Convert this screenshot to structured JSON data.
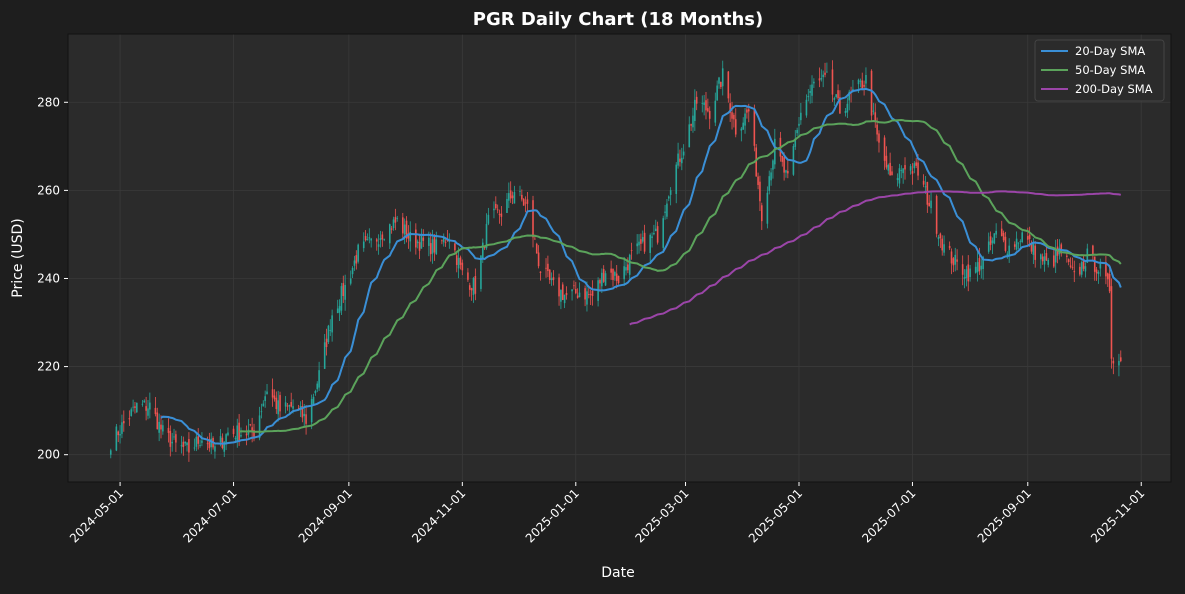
{
  "chart_data": {
    "type": "candlestick",
    "title": "PGR Daily Chart (18 Months)",
    "xlabel": "Date",
    "ylabel": "Price (USD)",
    "xlim": [
      "2024-04-03",
      "2025-11-17"
    ],
    "ylim": [
      193.8,
      295.5
    ],
    "yticks": [
      200,
      220,
      240,
      260,
      280
    ],
    "xticks": [
      "2024-05-01",
      "2024-07-01",
      "2024-09-01",
      "2024-11-01",
      "2025-01-01",
      "2025-03-01",
      "2025-05-01",
      "2025-07-01",
      "2025-09-01",
      "2025-11-01"
    ],
    "grid": true,
    "legend_position": "top-right",
    "legend": [
      {
        "label": "20-Day SMA",
        "window": 20,
        "color": "#3a8fd6"
      },
      {
        "label": "50-Day SMA",
        "window": 50,
        "color": "#5ba35b"
      },
      {
        "label": "200-Day SMA",
        "window": 200,
        "color": "#9b45a8"
      }
    ],
    "colors": {
      "up": "#26a69a",
      "down": "#ef5350",
      "plot_bg": "#2b2b2b",
      "grid": "#3a3a3a"
    },
    "close_keypoints": [
      [
        "2024-04-26",
        203
      ],
      [
        "2024-05-03",
        207
      ],
      [
        "2024-05-10",
        211
      ],
      [
        "2024-05-17",
        211
      ],
      [
        "2024-05-24",
        205
      ],
      [
        "2024-05-31",
        202
      ],
      [
        "2024-06-07",
        201
      ],
      [
        "2024-06-14",
        204
      ],
      [
        "2024-06-21",
        201
      ],
      [
        "2024-06-28",
        205
      ],
      [
        "2024-07-05",
        205
      ],
      [
        "2024-07-12",
        205
      ],
      [
        "2024-07-19",
        215
      ],
      [
        "2024-07-26",
        210
      ],
      [
        "2024-08-02",
        211
      ],
      [
        "2024-08-09",
        208
      ],
      [
        "2024-08-16",
        218
      ],
      [
        "2024-08-23",
        232
      ],
      [
        "2024-08-30",
        238
      ],
      [
        "2024-09-06",
        246
      ],
      [
        "2024-09-13",
        248
      ],
      [
        "2024-09-20",
        251
      ],
      [
        "2024-09-27",
        253
      ],
      [
        "2024-10-04",
        249
      ],
      [
        "2024-10-11",
        248
      ],
      [
        "2024-10-18",
        247
      ],
      [
        "2024-10-25",
        250
      ],
      [
        "2024-11-01",
        241
      ],
      [
        "2024-11-08",
        238
      ],
      [
        "2024-11-15",
        253
      ],
      [
        "2024-11-22",
        255
      ],
      [
        "2024-11-29",
        260
      ],
      [
        "2024-12-06",
        256
      ],
      [
        "2024-12-13",
        242
      ],
      [
        "2024-12-20",
        238
      ],
      [
        "2024-12-27",
        236
      ],
      [
        "2025-01-03",
        237
      ],
      [
        "2025-01-10",
        236
      ],
      [
        "2025-01-17",
        242
      ],
      [
        "2025-01-24",
        240
      ],
      [
        "2025-01-31",
        245
      ],
      [
        "2025-02-07",
        248
      ],
      [
        "2025-02-14",
        250
      ],
      [
        "2025-02-21",
        262
      ],
      [
        "2025-02-28",
        270
      ],
      [
        "2025-03-07",
        280
      ],
      [
        "2025-03-14",
        278
      ],
      [
        "2025-03-21",
        286
      ],
      [
        "2025-03-28",
        274
      ],
      [
        "2025-04-04",
        278
      ],
      [
        "2025-04-11",
        255
      ],
      [
        "2025-04-18",
        270
      ],
      [
        "2025-04-25",
        262
      ],
      [
        "2025-05-02",
        278
      ],
      [
        "2025-05-09",
        284
      ],
      [
        "2025-05-16",
        285
      ],
      [
        "2025-05-23",
        278
      ],
      [
        "2025-05-30",
        282
      ],
      [
        "2025-06-06",
        285
      ],
      [
        "2025-06-13",
        270
      ],
      [
        "2025-06-20",
        262
      ],
      [
        "2025-06-27",
        266
      ],
      [
        "2025-07-04",
        264
      ],
      [
        "2025-07-11",
        256
      ],
      [
        "2025-07-18",
        247
      ],
      [
        "2025-07-25",
        243
      ],
      [
        "2025-08-01",
        241
      ],
      [
        "2025-08-08",
        244
      ],
      [
        "2025-08-15",
        250
      ],
      [
        "2025-08-22",
        247
      ],
      [
        "2025-08-29",
        250
      ],
      [
        "2025-09-05",
        246
      ],
      [
        "2025-09-12",
        243
      ],
      [
        "2025-09-19",
        246
      ],
      [
        "2025-09-26",
        240
      ],
      [
        "2025-10-03",
        245
      ],
      [
        "2025-10-10",
        242
      ],
      [
        "2025-10-14",
        238
      ],
      [
        "2025-10-15",
        238
      ],
      [
        "2025-10-16",
        223
      ],
      [
        "2025-10-21",
        221
      ]
    ]
  }
}
